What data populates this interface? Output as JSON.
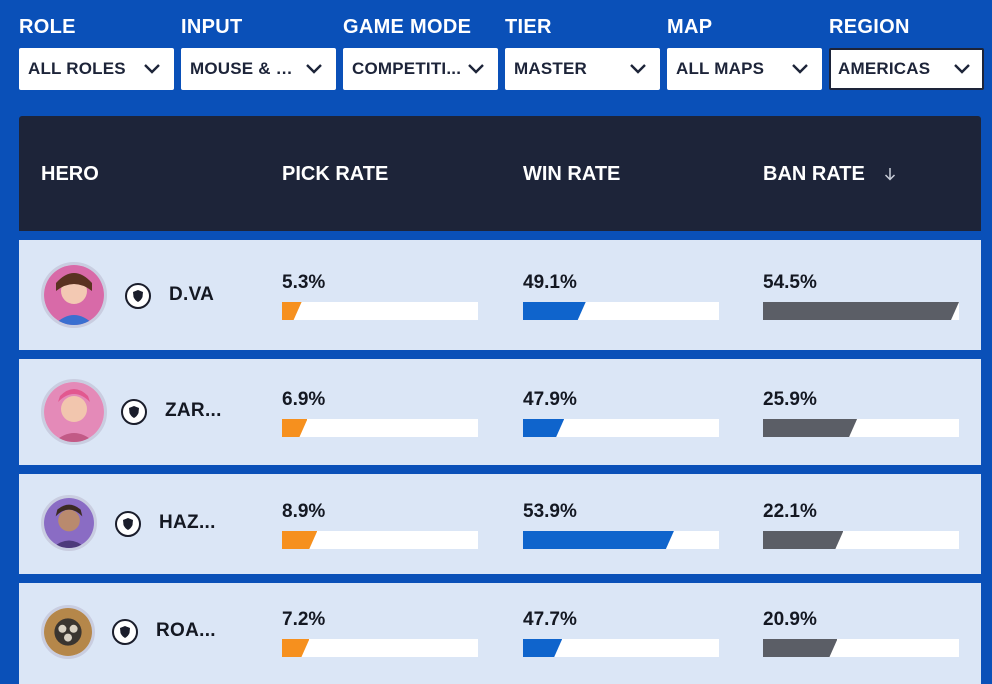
{
  "filters": [
    {
      "label": "ROLE",
      "value": "ALL ROLES",
      "active": false
    },
    {
      "label": "INPUT",
      "value": "MOUSE & K...",
      "active": false
    },
    {
      "label": "GAME MODE",
      "value": "COMPETITI...",
      "active": false
    },
    {
      "label": "TIER",
      "value": "MASTER",
      "active": false
    },
    {
      "label": "MAP",
      "value": "ALL MAPS",
      "active": false
    },
    {
      "label": "REGION",
      "value": "AMERICAS",
      "active": true
    }
  ],
  "table": {
    "headers": {
      "hero": "HERO",
      "pick": "PICK RATE",
      "win": "WIN RATE",
      "ban": "BAN RATE"
    },
    "sort_icon": "arrow-down-icon",
    "rows": [
      {
        "hero": "D.VA",
        "role_icon": "tank-shield-icon",
        "pick": "5.3%",
        "pick_fraction": 0.1,
        "win": "49.1%",
        "win_fraction": 0.32,
        "ban": "54.5%",
        "ban_fraction": 1.0,
        "avatar_color": "#d86aa8"
      },
      {
        "hero": "ZAR...",
        "role_icon": "tank-shield-icon",
        "pick": "6.9%",
        "pick_fraction": 0.13,
        "win": "47.9%",
        "win_fraction": 0.21,
        "ban": "25.9%",
        "ban_fraction": 0.48,
        "avatar_color": "#e48ab8"
      },
      {
        "hero": "HAZ...",
        "role_icon": "tank-shield-icon",
        "pick": "8.9%",
        "pick_fraction": 0.18,
        "win": "53.9%",
        "win_fraction": 0.77,
        "ban": "22.1%",
        "ban_fraction": 0.41,
        "avatar_color": "#8a6cc4"
      },
      {
        "hero": "ROA...",
        "role_icon": "tank-shield-icon",
        "pick": "7.2%",
        "pick_fraction": 0.14,
        "win": "47.7%",
        "win_fraction": 0.2,
        "ban": "20.9%",
        "ban_fraction": 0.38,
        "avatar_color": "#b5874a"
      }
    ]
  }
}
